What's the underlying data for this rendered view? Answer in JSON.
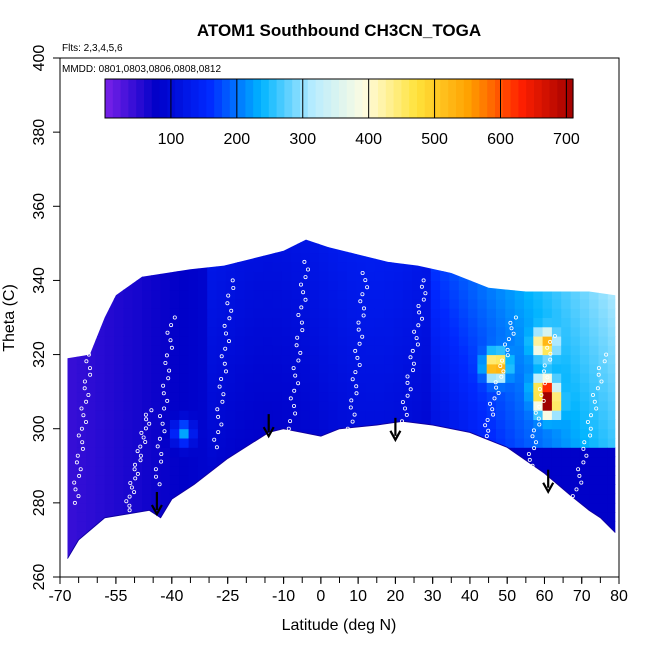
{
  "chart_data": {
    "type": "heatmap",
    "title": "ATOM1 Southbound CH3CN_TOGA",
    "annotations": {
      "flights": "Flts: 2,3,4,5,6",
      "dates": "MMDD: 0801,0803,0806,0808,0812"
    },
    "xlabel": "Latitude (deg N)",
    "ylabel": "Theta (C)",
    "xlim": [
      -70,
      80
    ],
    "ylim": [
      260,
      400
    ],
    "x_ticks": [
      -70,
      -55,
      -40,
      -25,
      -10,
      0,
      10,
      20,
      30,
      40,
      50,
      60,
      70,
      80
    ],
    "x_tick_labels": [
      "-70",
      "-55",
      "-40",
      "-25",
      "-10",
      "0",
      "10",
      "20",
      "30",
      "40",
      "50",
      "60",
      "70",
      "80"
    ],
    "y_ticks": [
      260,
      280,
      300,
      320,
      340,
      360,
      380,
      400
    ],
    "y_tick_labels": [
      "260",
      "280",
      "300",
      "320",
      "340",
      "360",
      "380",
      "400"
    ],
    "colorbar": {
      "range": [
        0,
        710
      ],
      "ticks": [
        100,
        200,
        300,
        400,
        500,
        600,
        700
      ],
      "tick_labels": [
        "100",
        "200",
        "300",
        "400",
        "500",
        "600",
        "700"
      ],
      "colors": [
        "#7a20e8",
        "#0000c8",
        "#0028ff",
        "#00b4ff",
        "#b8ecff",
        "#fffce0",
        "#ffe23a",
        "#ffa000",
        "#ff2000",
        "#a00000"
      ]
    },
    "surface_boundary": [
      [
        -68,
        265
      ],
      [
        -65,
        270
      ],
      [
        -58,
        276
      ],
      [
        -52,
        277
      ],
      [
        -46,
        278
      ],
      [
        -43,
        276
      ],
      [
        -40,
        281
      ],
      [
        -34,
        285
      ],
      [
        -25,
        292
      ],
      [
        -14,
        299
      ],
      [
        -10,
        300
      ],
      [
        -5,
        299
      ],
      [
        0,
        298
      ],
      [
        5,
        300
      ],
      [
        15,
        301
      ],
      [
        22,
        302
      ],
      [
        30,
        301
      ],
      [
        40,
        299
      ],
      [
        50,
        295
      ],
      [
        60,
        288
      ],
      [
        67,
        282
      ],
      [
        72,
        278
      ],
      [
        75,
        276
      ],
      [
        79,
        272
      ]
    ],
    "top_boundary": [
      [
        -68,
        319
      ],
      [
        -62,
        320
      ],
      [
        -58,
        330
      ],
      [
        -55,
        336
      ],
      [
        -48,
        341
      ],
      [
        -35,
        343
      ],
      [
        -26,
        344
      ],
      [
        -18,
        346
      ],
      [
        -10,
        348
      ],
      [
        -4,
        351
      ],
      [
        2,
        349
      ],
      [
        10,
        347
      ],
      [
        18,
        345
      ],
      [
        26,
        344
      ],
      [
        35,
        342
      ],
      [
        45,
        338
      ],
      [
        55,
        337
      ],
      [
        65,
        337
      ],
      [
        72,
        337
      ],
      [
        79,
        336
      ]
    ],
    "hotspots": [
      {
        "lat": 47,
        "theta": 317,
        "value": 600
      },
      {
        "lat": 60,
        "theta": 323,
        "value": 480
      },
      {
        "lat": 60,
        "theta": 311,
        "value": 500
      },
      {
        "lat": 61,
        "theta": 307,
        "value": 640
      },
      {
        "lat": -37,
        "theta": 299,
        "value": 300
      }
    ],
    "arrows": [
      {
        "lat": -44,
        "theta": 277
      },
      {
        "lat": -14,
        "theta": 298
      },
      {
        "lat": 20,
        "theta": 297
      },
      {
        "lat": 61,
        "theta": 283
      }
    ],
    "sample_tracks": [
      {
        "lat_from": -66,
        "lat_to": -62,
        "theta_from": 280,
        "theta_to": 320
      },
      {
        "lat_from": -52,
        "lat_to": -46,
        "theta_from": 278,
        "theta_to": 305
      },
      {
        "lat_from": -44,
        "lat_to": -40,
        "theta_from": 285,
        "theta_to": 330
      },
      {
        "lat_from": -28,
        "lat_to": -24,
        "theta_from": 295,
        "theta_to": 340
      },
      {
        "lat_from": -8,
        "lat_to": -4,
        "theta_from": 300,
        "theta_to": 345
      },
      {
        "lat_from": 8,
        "lat_to": 12,
        "theta_from": 300,
        "theta_to": 342
      },
      {
        "lat_from": 22,
        "lat_to": 28,
        "theta_from": 302,
        "theta_to": 340
      },
      {
        "lat_from": 44,
        "lat_to": 52,
        "theta_from": 298,
        "theta_to": 330
      },
      {
        "lat_from": 56,
        "lat_to": 62,
        "theta_from": 290,
        "theta_to": 325
      },
      {
        "lat_from": 68,
        "lat_to": 76,
        "theta_from": 280,
        "theta_to": 320
      }
    ],
    "grid": false,
    "legend_placement": "top"
  }
}
